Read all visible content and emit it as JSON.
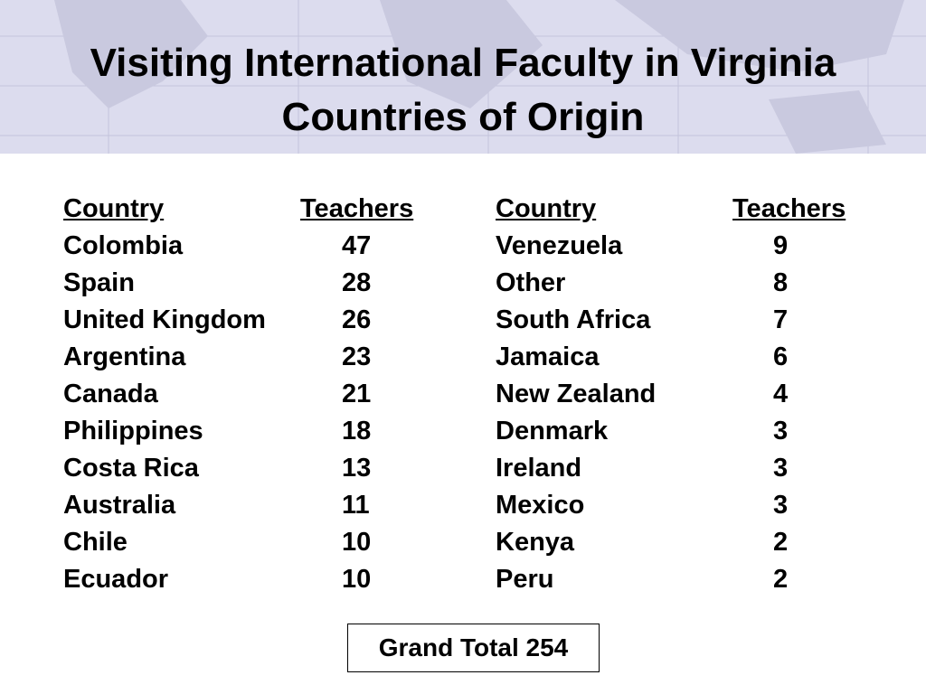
{
  "header": {
    "title_lines": [
      "Visiting International Faculty in Virginia",
      "Countries of Origin"
    ]
  },
  "tables": [
    {
      "headers": [
        "Country",
        "Teachers"
      ],
      "rows": [
        [
          "Colombia",
          47
        ],
        [
          "Spain",
          28
        ],
        [
          "United Kingdom",
          26
        ],
        [
          "Argentina",
          23
        ],
        [
          "Canada",
          21
        ],
        [
          "Philippines",
          18
        ],
        [
          "Costa Rica",
          13
        ],
        [
          "Australia",
          11
        ],
        [
          "Chile",
          10
        ],
        [
          "Ecuador",
          10
        ]
      ]
    },
    {
      "headers": [
        "Country",
        "Teachers"
      ],
      "rows": [
        [
          "Venezuela",
          9
        ],
        [
          "Other",
          8
        ],
        [
          "South Africa",
          7
        ],
        [
          "Jamaica",
          6
        ],
        [
          "New Zealand",
          4
        ],
        [
          "Denmark",
          3
        ],
        [
          "Ireland",
          3
        ],
        [
          "Mexico",
          3
        ],
        [
          "Kenya",
          2
        ],
        [
          "Peru",
          2
        ]
      ]
    }
  ],
  "footer": {
    "total": "Grand Total 254"
  }
}
